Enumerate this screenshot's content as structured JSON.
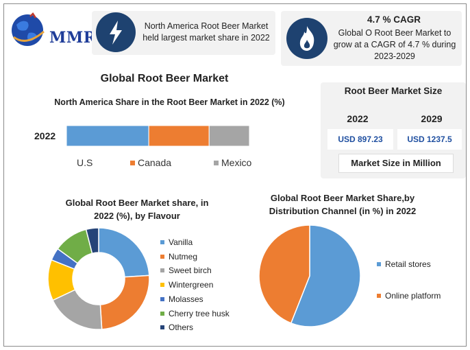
{
  "brand": {
    "logo_text": "MMR"
  },
  "top_boxes": {
    "left_text": "North America Root Beer Market held largest market share in 2022",
    "right_head": "4.7 % CAGR",
    "right_text": "Global O Root Beer Market to grow at a CAGR of 4.7 % during 2023-2029"
  },
  "title": "Global Root Beer Market",
  "market_size": {
    "title": "Root Beer Market Size",
    "year1": "2022",
    "year2": "2029",
    "value1": "USD 897.23",
    "value2": "USD 1237.5",
    "unit": "Market Size in Million"
  },
  "chart_data": [
    {
      "type": "bar",
      "title": "North America Share in the Root Beer Market in 2022 (%)",
      "orientation": "horizontal-stacked",
      "categories": [
        "2022"
      ],
      "series": [
        {
          "name": "U.S",
          "values": [
            45
          ],
          "color": "#5b9bd5"
        },
        {
          "name": "Canada",
          "values": [
            33
          ],
          "color": "#ed7d31"
        },
        {
          "name": "Mexico",
          "values": [
            22
          ],
          "color": "#a5a5a5"
        }
      ],
      "legend": "bottom"
    },
    {
      "type": "pie",
      "variant": "donut",
      "title": "Global Root Beer Market share, in 2022 (%), by Flavour",
      "labels": [
        "Vanilla",
        "Nutmeg",
        "Sweet birch",
        "Wintergreen",
        "Molasses",
        "Cherry tree husk",
        "Others"
      ],
      "values": [
        24,
        25,
        19,
        13,
        4,
        11,
        4
      ],
      "colors": [
        "#5b9bd5",
        "#ed7d31",
        "#a5a5a5",
        "#ffc000",
        "#4472c4",
        "#70ad47",
        "#264478"
      ],
      "legend": "right"
    },
    {
      "type": "pie",
      "title": "Global Root Beer Market Share,by Distribution Channel (in %) in 2022",
      "labels": [
        "Retail stores",
        "Online platform"
      ],
      "values": [
        56,
        44
      ],
      "colors": [
        "#5b9bd5",
        "#ed7d31"
      ],
      "legend": "right"
    }
  ]
}
